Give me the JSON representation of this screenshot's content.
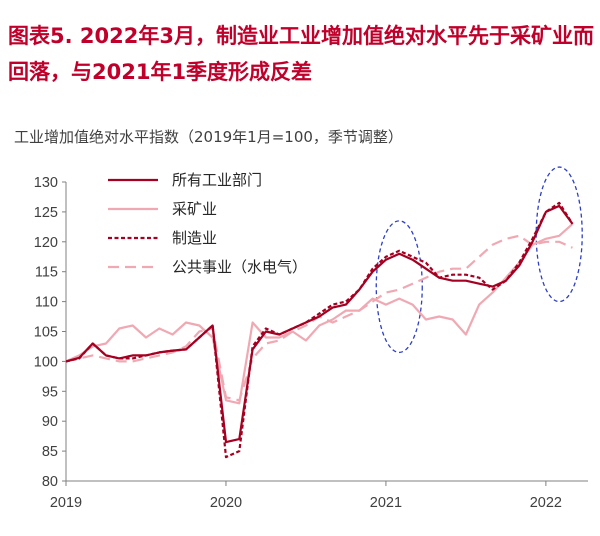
{
  "figure": {
    "title": "图表5. 2022年3月，制造业工业增加值绝对水平先于采矿业而回落，与2021年1季度形成反差"
  },
  "chart_data": {
    "type": "line",
    "title": "工业增加值绝对水平指数（2019年1月=100，季节调整）",
    "xlabel": "",
    "ylabel": "",
    "x_ticks": [
      "2019",
      "2020",
      "2021",
      "2022"
    ],
    "ylim": [
      80,
      130
    ],
    "y_ticks": [
      80,
      85,
      90,
      95,
      100,
      105,
      110,
      115,
      120,
      125,
      130
    ],
    "grid": false,
    "legend_position": "top-left",
    "x": [
      "2019-01",
      "2019-02",
      "2019-03",
      "2019-04",
      "2019-05",
      "2019-06",
      "2019-07",
      "2019-08",
      "2019-09",
      "2019-10",
      "2019-11",
      "2019-12",
      "2020-01",
      "2020-02",
      "2020-03",
      "2020-04",
      "2020-05",
      "2020-06",
      "2020-07",
      "2020-08",
      "2020-09",
      "2020-10",
      "2020-11",
      "2020-12",
      "2021-01",
      "2021-02",
      "2021-03",
      "2021-04",
      "2021-05",
      "2021-06",
      "2021-07",
      "2021-08",
      "2021-09",
      "2021-10",
      "2021-11",
      "2021-12",
      "2022-01",
      "2022-02",
      "2022-03"
    ],
    "series": [
      {
        "name": "所有工业部门",
        "color": "#a50021",
        "style": "solid",
        "values": [
          100.0,
          100.6,
          103.0,
          101.0,
          100.5,
          101.0,
          101.0,
          101.5,
          101.8,
          102.0,
          104.0,
          106.0,
          86.5,
          87.0,
          102.0,
          105.0,
          104.5,
          105.5,
          106.5,
          107.5,
          109.0,
          109.5,
          112.0,
          115.0,
          117.0,
          118.0,
          117.0,
          115.5,
          114.0,
          113.5,
          113.5,
          113.0,
          112.5,
          113.5,
          116.0,
          120.0,
          125.0,
          126.0,
          123.0
        ]
      },
      {
        "name": "采矿业",
        "color": "#f0a9b3",
        "style": "solid",
        "values": [
          100.0,
          101.0,
          102.5,
          103.0,
          105.5,
          106.0,
          104.0,
          105.5,
          104.5,
          106.5,
          106.0,
          104.0,
          93.5,
          93.0,
          106.5,
          104.0,
          104.0,
          105.0,
          103.5,
          106.0,
          107.0,
          108.5,
          108.5,
          110.5,
          109.5,
          110.5,
          109.5,
          107.0,
          107.5,
          107.0,
          104.5,
          109.5,
          111.5,
          114.0,
          116.5,
          119.5,
          120.5,
          121.0,
          123.0
        ]
      },
      {
        "name": "制造业",
        "color": "#a50021",
        "style": "dotted",
        "values": [
          100.0,
          100.5,
          103.0,
          101.0,
          100.5,
          100.5,
          101.0,
          101.5,
          101.8,
          102.0,
          104.0,
          106.0,
          84.0,
          85.0,
          102.5,
          105.5,
          104.5,
          105.5,
          106.5,
          108.0,
          109.5,
          110.0,
          112.0,
          115.5,
          117.5,
          118.5,
          117.5,
          116.5,
          114.0,
          114.5,
          114.5,
          114.0,
          112.0,
          113.5,
          116.5,
          120.5,
          125.0,
          126.5,
          123.0
        ]
      },
      {
        "name": "公共事业（水电气）",
        "color": "#f0a9b3",
        "style": "dashed",
        "values": [
          100.0,
          100.5,
          101.0,
          100.5,
          100.0,
          100.0,
          100.5,
          101.0,
          101.5,
          102.5,
          105.0,
          105.5,
          94.0,
          93.5,
          100.5,
          103.0,
          103.5,
          105.0,
          106.0,
          107.5,
          106.5,
          107.5,
          108.5,
          110.0,
          111.5,
          112.0,
          113.0,
          114.0,
          115.0,
          115.5,
          115.5,
          117.5,
          119.5,
          120.5,
          121.0,
          119.5,
          120.0,
          120.0,
          119.0
        ]
      }
    ],
    "highlight_ovals": [
      {
        "center_x": "2021-02",
        "y_range": [
          101.5,
          123.5
        ],
        "color": "#2e3fc4"
      },
      {
        "center_x": "2022-02",
        "y_range": [
          110,
          132.5
        ],
        "color": "#2e3fc4"
      }
    ]
  }
}
